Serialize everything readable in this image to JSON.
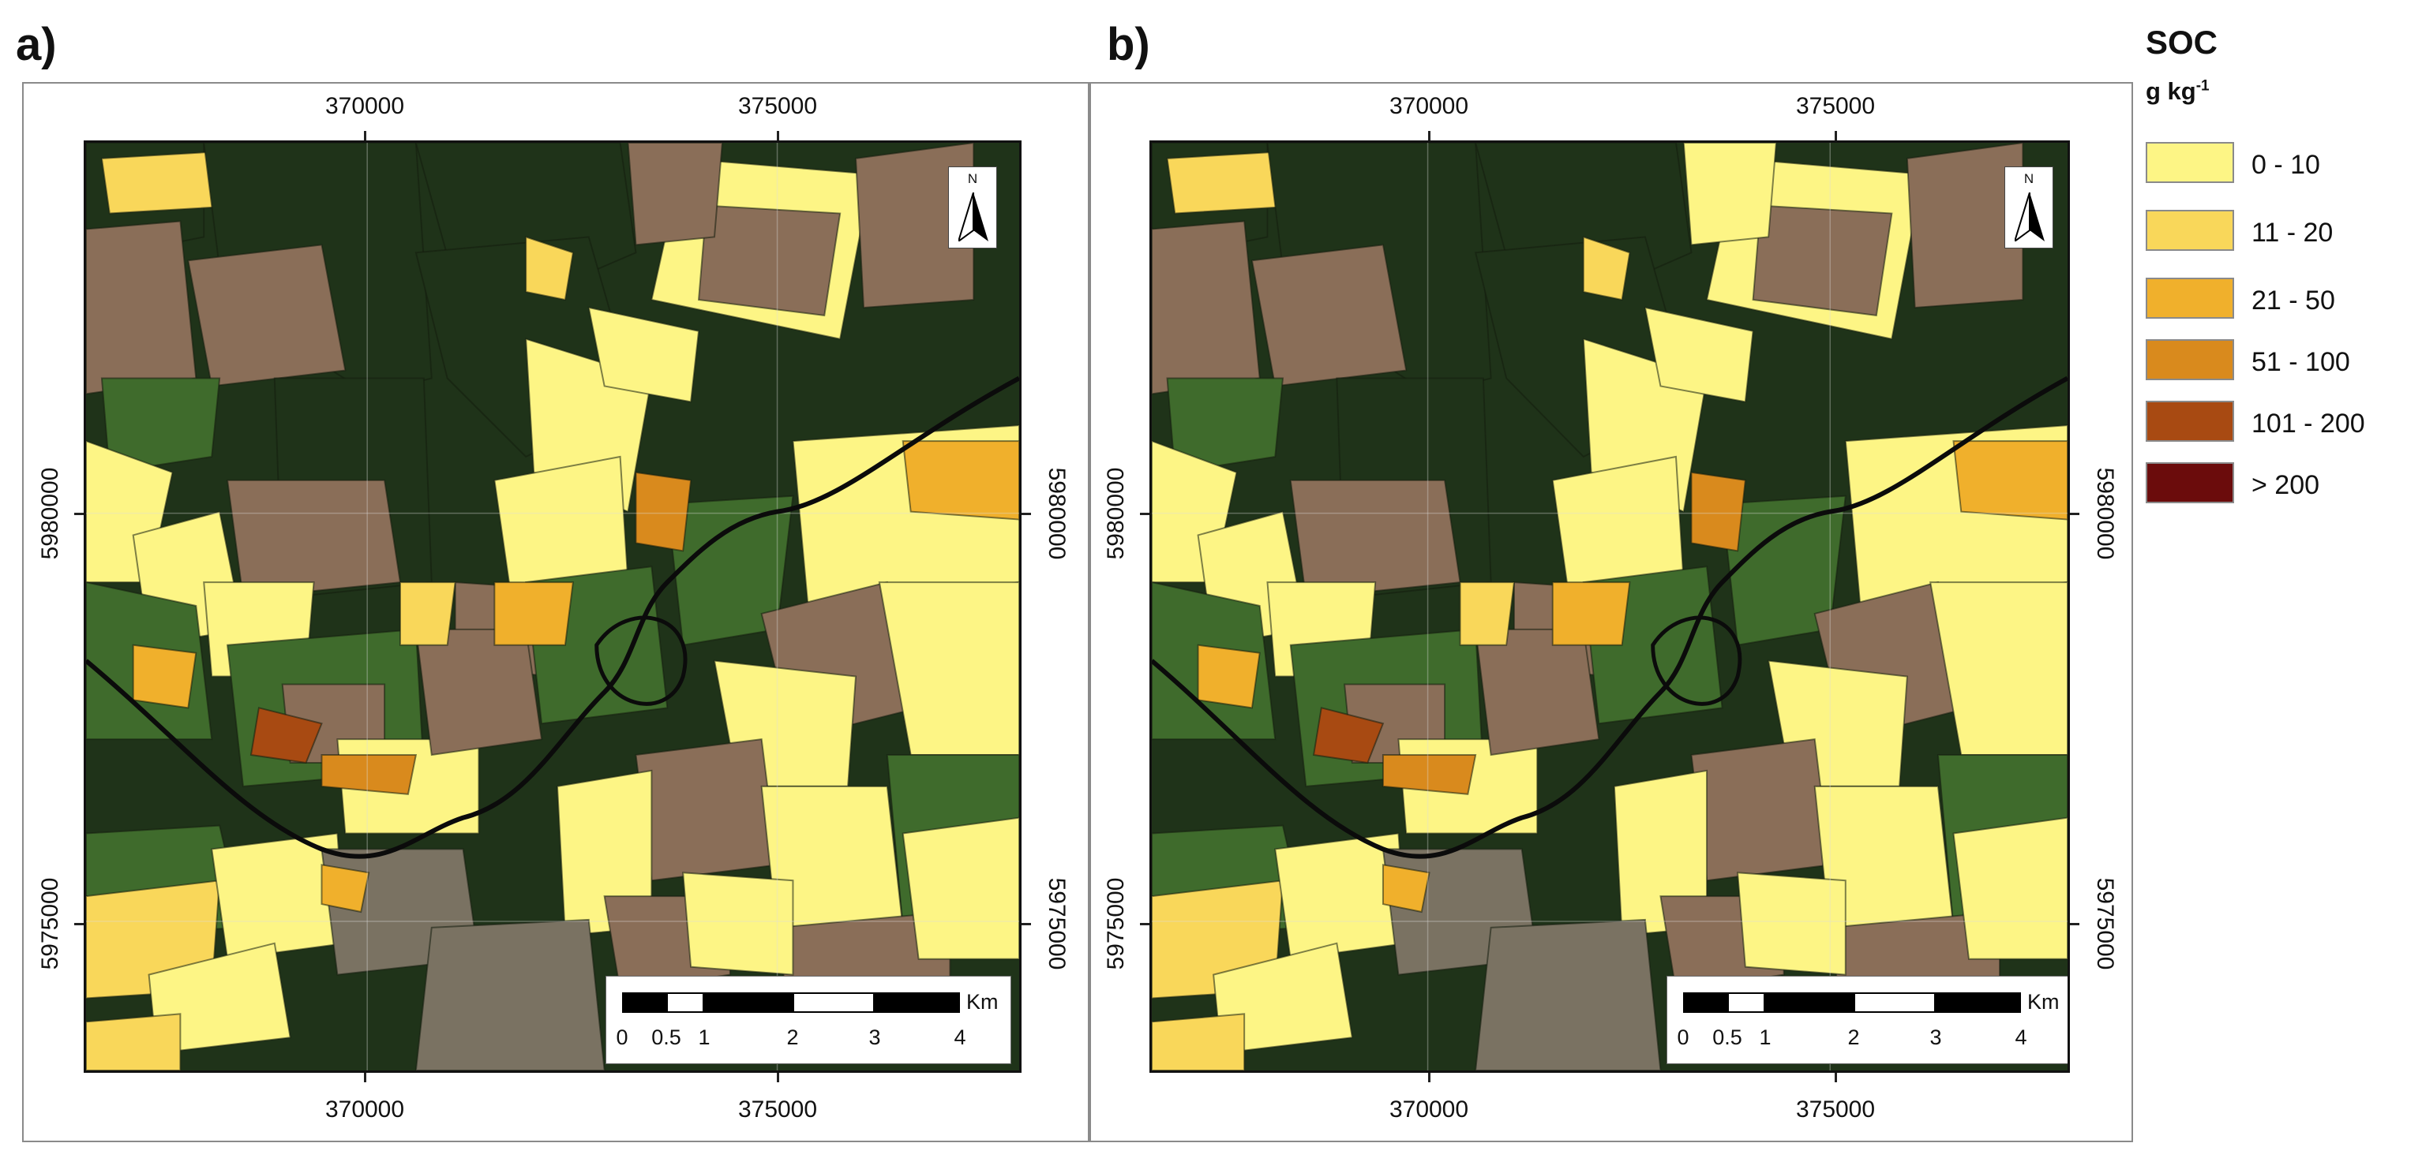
{
  "panels": [
    {
      "label": "a)",
      "coords": {
        "x_west": "370000",
        "x_east": "375000",
        "y_north": "5980000",
        "y_south": "5975000"
      },
      "north_letter": "N",
      "scalebar": {
        "unit": "Km",
        "labels": [
          "0",
          "0.5",
          "1",
          "2",
          "3",
          "4"
        ]
      }
    },
    {
      "label": "b)",
      "coords": {
        "x_west": "370000",
        "x_east": "375000",
        "y_north": "5980000",
        "y_south": "5975000"
      },
      "north_letter": "N",
      "scalebar": {
        "unit": "Km",
        "labels": [
          "0",
          "0.5",
          "1",
          "2",
          "3",
          "4"
        ]
      }
    }
  ],
  "legend": {
    "title": "SOC",
    "unit_base": "g kg",
    "unit_exp": "-1",
    "classes": [
      {
        "label": "0 - 10",
        "color": "#fdf585"
      },
      {
        "label": "11 - 20",
        "color": "#f9d75a"
      },
      {
        "label": "21 - 50",
        "color": "#f0b02c"
      },
      {
        "label": "51 - 100",
        "color": "#d98a1d"
      },
      {
        "label": "101 - 200",
        "color": "#a84a12"
      },
      {
        "label": "> 200",
        "color": "#6b0c0c"
      }
    ]
  },
  "colors": {
    "forest": "#1f3319",
    "grassland": "#3f6b2c",
    "bare_soil": "#8a6e58",
    "river": "#0b0b0b",
    "settlement": "#7a7262"
  }
}
